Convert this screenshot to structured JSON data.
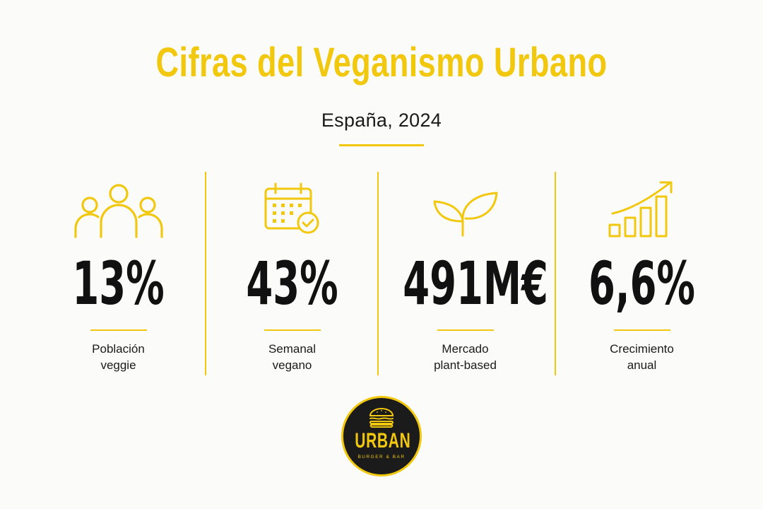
{
  "title": "Cifras del Veganismo Urbano",
  "subtitle": "España, 2024",
  "colors": {
    "accent": "#f2c80f",
    "text": "#1a1a1a",
    "background": "#fbfbfa"
  },
  "stats": [
    {
      "icon": "people-group-icon",
      "value": "13%",
      "label": "Población\nveggie"
    },
    {
      "icon": "calendar-check-icon",
      "value": "43%",
      "label": "Semanal\nvegano"
    },
    {
      "icon": "plant-sprout-icon",
      "value": "491M€",
      "label": "Mercado\nplant-based"
    },
    {
      "icon": "growth-chart-icon",
      "value": "6,6%",
      "label": "Crecimiento\nanual"
    }
  ],
  "logo": {
    "brand": "URBAN",
    "tagline": "BURGER & BAR"
  }
}
